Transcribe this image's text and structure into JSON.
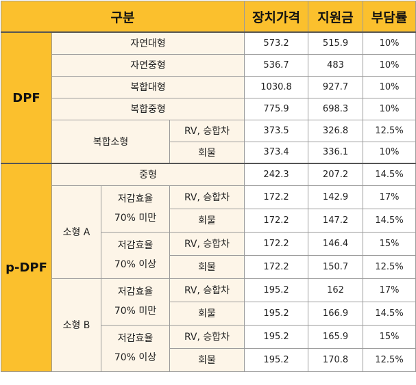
{
  "header": {
    "category": "구분",
    "price": "장치가격",
    "subsidy": "지원금",
    "burden": "부담률"
  },
  "groups": {
    "dpf": "DPF",
    "pdpf": "p-DPF"
  },
  "dpf_rows": [
    {
      "label": "자연대형",
      "price": "573.2",
      "subsidy": "515.9",
      "burden": "10%"
    },
    {
      "label": "자연중형",
      "price": "536.7",
      "subsidy": "483",
      "burden": "10%"
    },
    {
      "label": "복합대형",
      "price": "1030.8",
      "subsidy": "927.7",
      "burden": "10%"
    },
    {
      "label": "복합중형",
      "price": "775.9",
      "subsidy": "698.3",
      "burden": "10%"
    }
  ],
  "dpf_small": {
    "label": "복합소형",
    "rows": [
      {
        "type": "RV, 승합차",
        "price": "373.5",
        "subsidy": "326.8",
        "burden": "12.5%"
      },
      {
        "type": "회물",
        "price": "373.4",
        "subsidy": "336.1",
        "burden": "10%"
      }
    ]
  },
  "pdpf_medium": {
    "label": "중형",
    "price": "242.3",
    "subsidy": "207.2",
    "burden": "14.5%"
  },
  "pdpf_small_a": {
    "label": "소형 A",
    "low": {
      "line1": "저감효율",
      "line2": "70% 미만",
      "rows": [
        {
          "type": "RV, 승합차",
          "price": "172.2",
          "subsidy": "142.9",
          "burden": "17%"
        },
        {
          "type": "회물",
          "price": "172.2",
          "subsidy": "147.2",
          "burden": "14.5%"
        }
      ]
    },
    "high": {
      "line1": "저감효율",
      "line2": "70% 이상",
      "rows": [
        {
          "type": "RV, 승합차",
          "price": "172.2",
          "subsidy": "146.4",
          "burden": "15%"
        },
        {
          "type": "회물",
          "price": "172.2",
          "subsidy": "150.7",
          "burden": "12.5%"
        }
      ]
    }
  },
  "pdpf_small_b": {
    "label": "소형 B",
    "low": {
      "line1": "저감효율",
      "line2": "70% 미만",
      "rows": [
        {
          "type": "RV, 승합차",
          "price": "195.2",
          "subsidy": "162",
          "burden": "17%"
        },
        {
          "type": "회물",
          "price": "195.2",
          "subsidy": "166.9",
          "burden": "14.5%"
        }
      ]
    },
    "high": {
      "line1": "저감효율",
      "line2": "70% 이상",
      "rows": [
        {
          "type": "RV, 승합차",
          "price": "195.2",
          "subsidy": "165.9",
          "burden": "15%"
        },
        {
          "type": "회물",
          "price": "195.2",
          "subsidy": "170.8",
          "burden": "12.5%"
        }
      ]
    }
  },
  "colors": {
    "header_bg": "#fbc02d",
    "category_bg": "#fdf5e8",
    "value_bg": "#ffffff"
  }
}
